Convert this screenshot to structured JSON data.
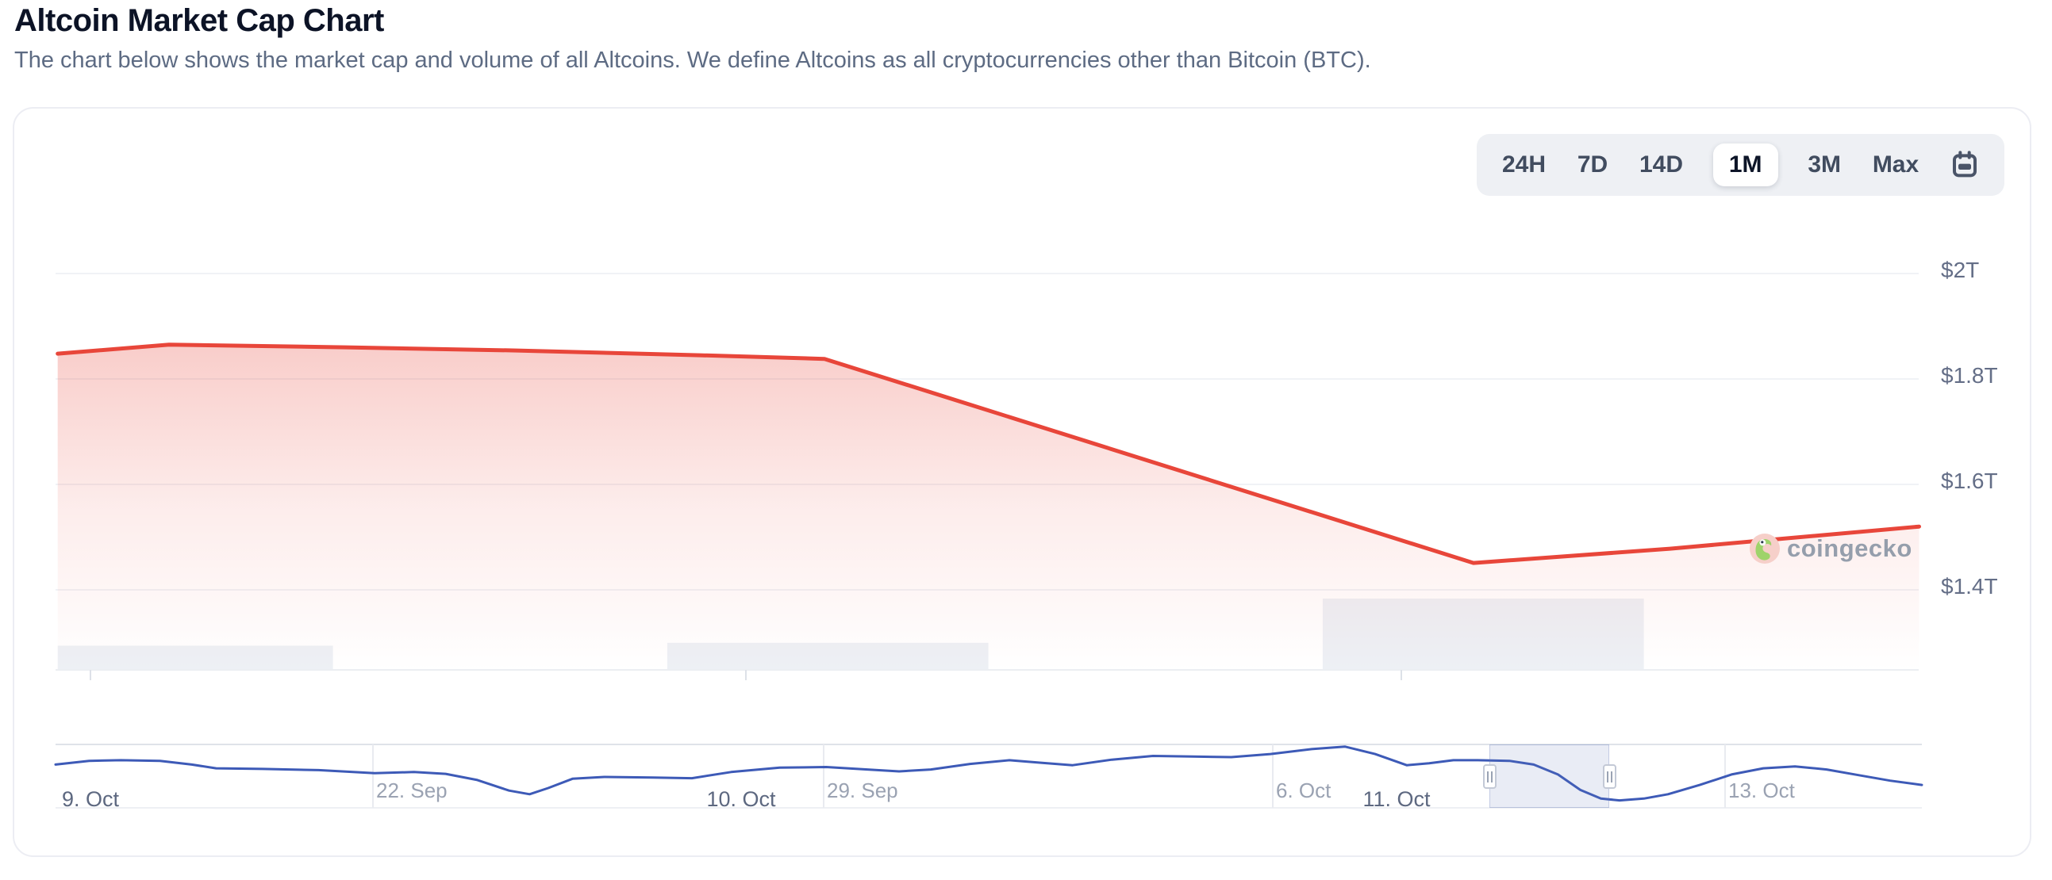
{
  "page": {
    "title": "Altcoin Market Cap Chart",
    "subtitle": "The chart below shows the market cap and volume of all Altcoins. We define Altcoins as all cryptocurrencies other than Bitcoin (BTC)."
  },
  "toolbar": {
    "ranges": [
      "24H",
      "7D",
      "14D",
      "1M",
      "3M",
      "Max"
    ],
    "selected": "1M",
    "calendar_icon": "calendar"
  },
  "watermark": {
    "text": "coingecko",
    "logo_icon": "coingecko-gecko"
  },
  "chart_data": {
    "type": "area",
    "title": "Altcoin Market Cap Chart",
    "unit": "USD trillions",
    "legend": false,
    "grid": true,
    "series": [
      {
        "name": "Altcoin Market Cap",
        "color": "#e8463a",
        "x_unit": "days since 9. Oct 00:00",
        "points": [
          [
            -0.05,
            1.848
          ],
          [
            0.12,
            1.865
          ],
          [
            0.39,
            1.86
          ],
          [
            0.65,
            1.854
          ],
          [
            0.93,
            1.845
          ],
          [
            1.12,
            1.838
          ],
          [
            2.11,
            1.451
          ],
          [
            2.41,
            1.478
          ],
          [
            2.79,
            1.52
          ]
        ]
      }
    ],
    "volume_bars": [
      {
        "label": "9. Oct",
        "x1": -0.05,
        "x2": 0.37,
        "height_frac": 0.34
      },
      {
        "label": "10. Oct",
        "x1": 0.88,
        "x2": 1.37,
        "height_frac": 0.38
      },
      {
        "label": "11. Oct",
        "x1": 1.88,
        "x2": 2.37,
        "height_frac": 1.0
      }
    ],
    "y_axis": {
      "side": "right",
      "ticks": [
        "$2T",
        "$1.8T",
        "$1.6T",
        "$1.4T"
      ],
      "tick_values": [
        2.0,
        1.8,
        1.6,
        1.4
      ]
    },
    "x_axis": {
      "ticks": [
        {
          "label": "9. Oct",
          "day": 0
        },
        {
          "label": "10. Oct",
          "day": 1
        },
        {
          "label": "11. Oct",
          "day": 2
        }
      ]
    },
    "navigator": {
      "type": "line",
      "color": "#3d5ab7",
      "x_labels": [
        "22. Sep",
        "29. Sep",
        "6. Oct",
        "13. Oct"
      ],
      "selected_window": "9. Oct – 12. Oct",
      "points_norm": [
        [
          0.0,
          0.3
        ],
        [
          0.018,
          0.24
        ],
        [
          0.035,
          0.23
        ],
        [
          0.056,
          0.24
        ],
        [
          0.073,
          0.3
        ],
        [
          0.086,
          0.36
        ],
        [
          0.111,
          0.37
        ],
        [
          0.141,
          0.39
        ],
        [
          0.171,
          0.44
        ],
        [
          0.192,
          0.42
        ],
        [
          0.209,
          0.45
        ],
        [
          0.226,
          0.55
        ],
        [
          0.243,
          0.72
        ],
        [
          0.254,
          0.78
        ],
        [
          0.264,
          0.68
        ],
        [
          0.277,
          0.53
        ],
        [
          0.294,
          0.5
        ],
        [
          0.32,
          0.51
        ],
        [
          0.341,
          0.52
        ],
        [
          0.362,
          0.42
        ],
        [
          0.388,
          0.35
        ],
        [
          0.413,
          0.34
        ],
        [
          0.435,
          0.38
        ],
        [
          0.452,
          0.41
        ],
        [
          0.469,
          0.38
        ],
        [
          0.49,
          0.29
        ],
        [
          0.511,
          0.23
        ],
        [
          0.528,
          0.27
        ],
        [
          0.545,
          0.31
        ],
        [
          0.566,
          0.22
        ],
        [
          0.588,
          0.16
        ],
        [
          0.609,
          0.17
        ],
        [
          0.63,
          0.18
        ],
        [
          0.651,
          0.13
        ],
        [
          0.673,
          0.05
        ],
        [
          0.691,
          0.01
        ],
        [
          0.707,
          0.13
        ],
        [
          0.724,
          0.31
        ],
        [
          0.736,
          0.28
        ],
        [
          0.749,
          0.23
        ],
        [
          0.762,
          0.23
        ],
        [
          0.779,
          0.24
        ],
        [
          0.792,
          0.3
        ],
        [
          0.805,
          0.46
        ],
        [
          0.817,
          0.71
        ],
        [
          0.828,
          0.85
        ],
        [
          0.838,
          0.88
        ],
        [
          0.851,
          0.85
        ],
        [
          0.864,
          0.78
        ],
        [
          0.881,
          0.63
        ],
        [
          0.898,
          0.46
        ],
        [
          0.915,
          0.36
        ],
        [
          0.932,
          0.33
        ],
        [
          0.949,
          0.38
        ],
        [
          0.966,
          0.47
        ],
        [
          0.983,
          0.56
        ],
        [
          1.0,
          0.63
        ]
      ]
    }
  }
}
